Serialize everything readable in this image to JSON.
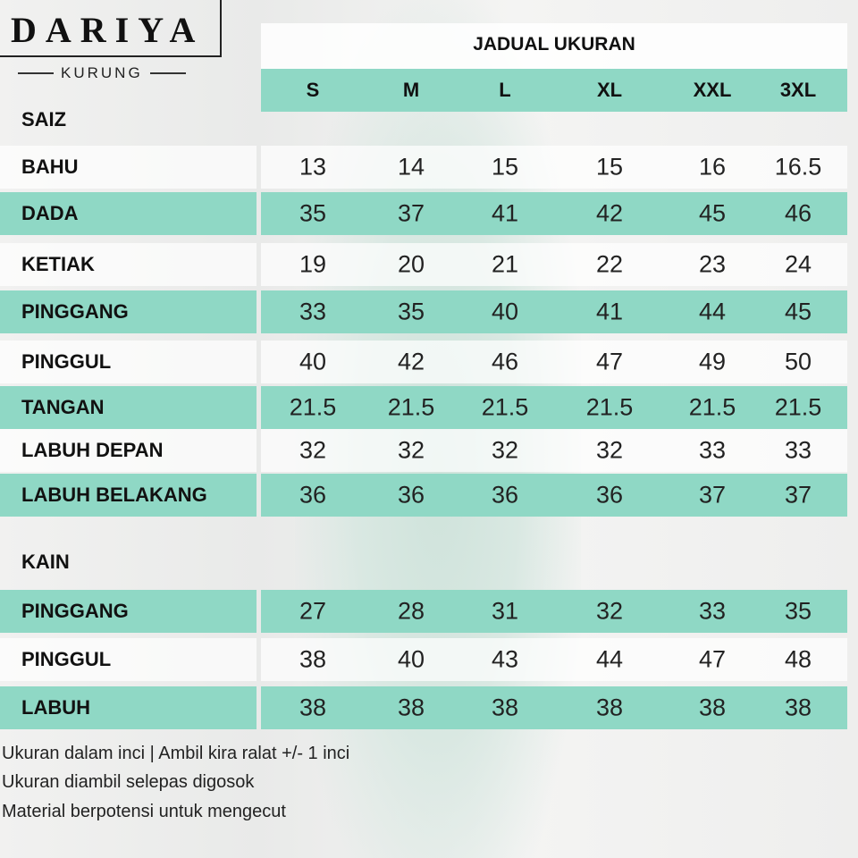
{
  "brand": {
    "name": "DARIYA",
    "subtitle": "KURUNG"
  },
  "table": {
    "title": "JADUAL UKURAN",
    "sizes": [
      "S",
      "M",
      "L",
      "XL",
      "XXL",
      "3XL"
    ],
    "baju_section": "SAIZ",
    "baju_rows": [
      {
        "label": "BAHU",
        "values": [
          "13",
          "14",
          "15",
          "15",
          "16",
          "16.5"
        ]
      },
      {
        "label": "DADA",
        "values": [
          "35",
          "37",
          "41",
          "42",
          "45",
          "46"
        ]
      },
      {
        "label": "KETIAK",
        "values": [
          "19",
          "20",
          "21",
          "22",
          "23",
          "24"
        ]
      },
      {
        "label": "PINGGANG",
        "values": [
          "33",
          "35",
          "40",
          "41",
          "44",
          "45"
        ]
      },
      {
        "label": "PINGGUL",
        "values": [
          "40",
          "42",
          "46",
          "47",
          "49",
          "50"
        ]
      },
      {
        "label": "TANGAN",
        "values": [
          "21.5",
          "21.5",
          "21.5",
          "21.5",
          "21.5",
          "21.5"
        ]
      },
      {
        "label": "LABUH DEPAN",
        "values": [
          "32",
          "32",
          "32",
          "32",
          "33",
          "33"
        ]
      },
      {
        "label": "LABUH BELAKANG",
        "values": [
          "36",
          "36",
          "36",
          "36",
          "37",
          "37"
        ]
      }
    ],
    "kain_section": "KAIN",
    "kain_rows": [
      {
        "label": "PINGGANG",
        "values": [
          "27",
          "28",
          "31",
          "32",
          "33",
          "35"
        ]
      },
      {
        "label": "PINGGUL",
        "values": [
          "38",
          "40",
          "43",
          "44",
          "47",
          "48"
        ]
      },
      {
        "label": "LABUH",
        "values": [
          "38",
          "38",
          "38",
          "38",
          "38",
          "38"
        ]
      }
    ]
  },
  "notes": [
    "Ukuran dalam inci  |   Ambil kira ralat +/- 1 inci",
    "Ukuran diambil selepas  digosok",
    "Material berpotensi untuk mengecut"
  ],
  "colors": {
    "accent": "#8fd8c5"
  }
}
